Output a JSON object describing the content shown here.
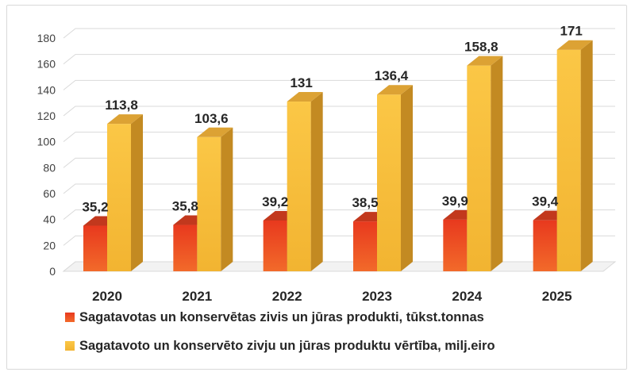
{
  "chart_data": {
    "type": "bar",
    "categories": [
      "2020",
      "2021",
      "2022",
      "2023",
      "2024",
      "2025"
    ],
    "series": [
      {
        "name": "Sagatavotas un konservētas zivis un jūras produkti, tūkst.tonnas",
        "values": [
          35.2,
          35.8,
          39.2,
          38.5,
          39.9,
          39.4
        ],
        "labels": [
          "35,2",
          "35,8",
          "39,2",
          "38,5",
          "39,9",
          "39,4"
        ],
        "color": "#e8391e"
      },
      {
        "name": "Sagatavoto un konservēto zivju un jūras produktu vērtība, milj.eiro",
        "values": [
          113.8,
          103.6,
          131,
          136.4,
          158.8,
          171
        ],
        "labels": [
          "113,8",
          "103,6",
          "131",
          "136,4",
          "158,8",
          "171"
        ],
        "color": "#f5b630"
      }
    ],
    "ylim": [
      0,
      180
    ],
    "yticks": [
      0,
      20,
      40,
      60,
      80,
      100,
      120,
      140,
      160,
      180
    ],
    "grid": true,
    "legend_position": "bottom",
    "style": "3d-clustered-column"
  }
}
